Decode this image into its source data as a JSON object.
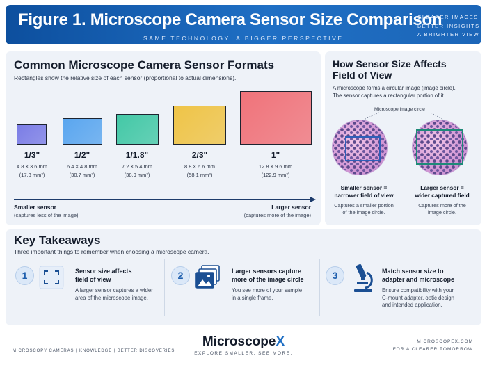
{
  "header": {
    "title": "Figure 1. Microscope Camera Sensor Size Comparison",
    "subtitle": "SAME TECHNOLOGY. A BIGGER PERSPECTIVE.",
    "slogan": [
      "CLEARER IMAGES",
      "BETTER INSIGHTS",
      "A BRIGHTER VIEW"
    ]
  },
  "formats": {
    "heading": "Common Microscope Camera Sensor Formats",
    "description": "Rectangles show the relative size of each sensor (proportional to actual dimensions).",
    "sensors": [
      {
        "label": "1/3\"",
        "dims": "4.8 × 3.6 mm",
        "area": "(17.3 mm²)",
        "color": "#7b7de6"
      },
      {
        "label": "1/2\"",
        "dims": "6.4 × 4.8 mm",
        "area": "(30.7 mm²)",
        "color": "#5aa6ef"
      },
      {
        "label": "1/1.8\"",
        "dims": "7.2 × 5.4 mm",
        "area": "(38.9 mm²)",
        "color": "#43c8a6"
      },
      {
        "label": "2/3\"",
        "dims": "8.8 × 6.6 mm",
        "area": "(58.1 mm²)",
        "color": "#efc447"
      },
      {
        "label": "1\"",
        "dims": "12.8 × 9.6 mm",
        "area": "(122.9 mm²)",
        "color": "#f0737a"
      }
    ],
    "axis_left_title": "Smaller sensor",
    "axis_left_note": "(captures less of the image)",
    "axis_right_title": "Larger sensor",
    "axis_right_note": "(captures more of the image)"
  },
  "fov": {
    "heading_line1": "How Sensor Size Affects",
    "heading_line2": "Field of View",
    "description_line1": "A microscope forms a  circular image (image circle).",
    "description_line2": "The sensor captures a  rectangular portion of it.",
    "circle_label": "Microscope image circle",
    "left_title_line1": "Smaller sensor =",
    "left_title_line2": "narrower field of view",
    "left_note_line1": "Captures a smaller portion",
    "left_note_line2": "of the image circle.",
    "right_title_line1": "Larger sensor =",
    "right_title_line2": "wider captured field",
    "right_note_line1": "Captures more of the",
    "right_note_line2": "image circle.",
    "small_frame_color": "#2f5fb8",
    "large_frame_color": "#1e8a78"
  },
  "takeaways": {
    "heading": "Key Takeaways",
    "description": "Three important things to remember when choosing a microscope camera.",
    "items": [
      {
        "number": "1",
        "title_line1": "Sensor size affects",
        "title_line2": "field of view",
        "desc_line1": "A larger sensor captures a wider",
        "desc_line2": "area of the microscope image.",
        "desc_line3": "",
        "icon": "frame-corners-icon"
      },
      {
        "number": "2",
        "title_line1": "Larger sensors capture",
        "title_line2": "more of the image circle",
        "desc_line1": "You see more of your sample",
        "desc_line2": "in a single frame.",
        "desc_line3": "",
        "icon": "stacked-images-icon"
      },
      {
        "number": "3",
        "title_line1": "Match sensor size to",
        "title_line2": "adapter and microscope",
        "desc_line1": "Ensure compatibility with your",
        "desc_line2": "C-mount adapter, optic design",
        "desc_line3": "and intended application.",
        "icon": "microscope-icon"
      }
    ]
  },
  "footer": {
    "left": "MICROSCOPY CAMERAS  |  KNOWLEDGE  |  BETTER DISCOVERIES",
    "brand_main": "Microscope",
    "brand_x": "X",
    "brand_tagline": "EXPLORE SMALLER. SEE MORE.",
    "site": "MICROSCOPEX.COM",
    "site_tagline": "FOR A CLEARER TOMORROW"
  },
  "colors": {
    "accent": "#1f6fc4",
    "header_dark": "#0d4f9e"
  }
}
